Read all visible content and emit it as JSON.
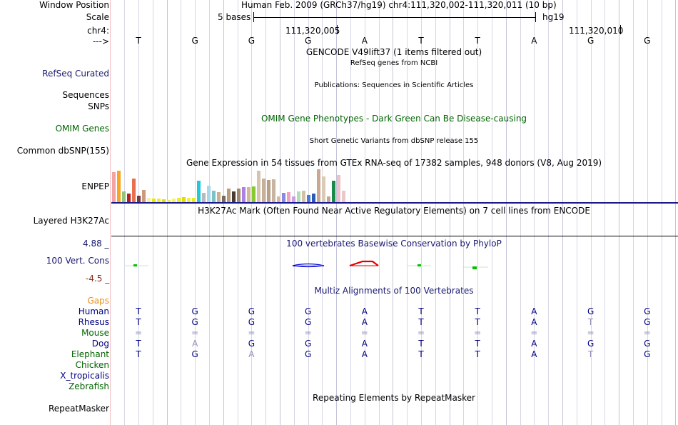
{
  "header": {
    "window_position_label": "Window Position",
    "window_position_text": "Human Feb. 2009 (GRCh37/hg19)   chr4:111,320,002-111,320,011 (10 bp)",
    "scale_label": "Scale",
    "scale_text": "5 bases",
    "assembly": "hg19",
    "chrom_label": "chr4:",
    "coord1": "111,320,005",
    "coord2": "111,320,010",
    "strand_label": "--->"
  },
  "bases": [
    "T",
    "G",
    "G",
    "G",
    "A",
    "T",
    "T",
    "A",
    "G",
    "G"
  ],
  "tracks": {
    "gencode_title": "GENCODE V49lift37 (1 items filtered out)",
    "refseq_subtitle": "RefSeq genes from NCBI",
    "refseq_label": "RefSeq Curated",
    "sequences_label": "Sequences",
    "snps_label": "SNPs",
    "publications_title": "Publications: Sequences in Scientific Articles",
    "omim_title": "OMIM Gene Phenotypes - Dark Green Can Be Disease-causing",
    "omim_label": "OMIM Genes",
    "dbsnp_title": "Short Genetic Variants from dbSNP release 155",
    "dbsnp_label": "Common dbSNP(155)",
    "gtex_title": "Gene Expression in 54 tissues from GTEx RNA-seq of 17382 samples, 948 donors (V8, Aug 2019)",
    "gtex_label": "ENPEP",
    "h3k27_title": "H3K27Ac Mark (Often Found Near Active Regulatory Elements) on 7 cell lines from ENCODE",
    "h3k27_label": "Layered H3K27Ac",
    "phylop_max": "4.88 _",
    "phylop_min": "-4.5 _",
    "phylop_title": "100 vertebrates Basewise Conservation by PhyloP",
    "phylop_label": "100 Vert. Cons",
    "multiz_title": "Multiz Alignments of 100 Vertebrates",
    "gaps_label": "Gaps",
    "repeat_title": "Repeating Elements by RepeatMasker",
    "repeat_label": "RepeatMasker"
  },
  "gtex_bars": [
    {
      "color": "#f4a3a3",
      "value": 0.92
    },
    {
      "color": "#f5a623",
      "value": 0.95
    },
    {
      "color": "#92c47f",
      "value": 0.32
    },
    {
      "color": "#b22222",
      "value": 0.25
    },
    {
      "color": "#e8704f",
      "value": 0.72
    },
    {
      "color": "#7a3b3b",
      "value": 0.2
    },
    {
      "color": "#cd9b7b",
      "value": 0.36
    },
    {
      "color": "#f2f2a0",
      "value": 0.12
    },
    {
      "color": "#e8e800",
      "value": 0.1
    },
    {
      "color": "#eeee33",
      "value": 0.1
    },
    {
      "color": "#dddd11",
      "value": 0.08
    },
    {
      "color": "#eeee55",
      "value": 0.06
    },
    {
      "color": "#f5f566",
      "value": 0.1
    },
    {
      "color": "#eeee22",
      "value": 0.13
    },
    {
      "color": "#dede00",
      "value": 0.15
    },
    {
      "color": "#f0f044",
      "value": 0.13
    },
    {
      "color": "#eaea22",
      "value": 0.12
    },
    {
      "color": "#22c8d8",
      "value": 0.65
    },
    {
      "color": "#b8b8c0",
      "value": 0.28
    },
    {
      "color": "#a8d8ea",
      "value": 0.5
    },
    {
      "color": "#7ec0c8",
      "value": 0.35
    },
    {
      "color": "#c8b090",
      "value": 0.3
    },
    {
      "color": "#7a6a5a",
      "value": 0.2
    },
    {
      "color": "#b89c80",
      "value": 0.42
    },
    {
      "color": "#4a3c30",
      "value": 0.33
    },
    {
      "color": "#a08a70",
      "value": 0.42
    },
    {
      "color": "#b080e0",
      "value": 0.45
    },
    {
      "color": "#d0b898",
      "value": 0.45
    },
    {
      "color": "#8ac832",
      "value": 0.47
    },
    {
      "color": "#d4c4b0",
      "value": 0.95
    },
    {
      "color": "#c8b098",
      "value": 0.72
    },
    {
      "color": "#b8a088",
      "value": 0.68
    },
    {
      "color": "#c8b4a0",
      "value": 0.7
    },
    {
      "color": "#d4b8a4",
      "value": 0.18
    },
    {
      "color": "#8a88e0",
      "value": 0.28
    },
    {
      "color": "#f0a0c0",
      "value": 0.3
    },
    {
      "color": "#c8a0e8",
      "value": 0.18
    },
    {
      "color": "#b0e0b0",
      "value": 0.33
    },
    {
      "color": "#d4c0a8",
      "value": 0.35
    },
    {
      "color": "#4a7ad8",
      "value": 0.22
    },
    {
      "color": "#2a5ab8",
      "value": 0.25
    },
    {
      "color": "#c8a890",
      "value": 1.0
    },
    {
      "color": "#dccab8",
      "value": 0.78
    },
    {
      "color": "#c0a890",
      "value": 0.18
    },
    {
      "color": "#1a8a4a",
      "value": 0.65
    },
    {
      "color": "#f0c0c8",
      "value": 0.82
    },
    {
      "color": "#e8c8c8",
      "value": 0.35
    }
  ],
  "alignments": [
    {
      "species": "Human",
      "color": "#000080",
      "bases": [
        "T",
        "G",
        "G",
        "G",
        "A",
        "T",
        "T",
        "A",
        "G",
        "G"
      ]
    },
    {
      "species": "Rhesus",
      "color": "#000080",
      "bases": [
        "T",
        "G",
        "G",
        "G",
        "A",
        "T",
        "T",
        "A",
        "T",
        "G"
      ],
      "light": [
        8
      ]
    },
    {
      "species": "Mouse",
      "color": "#006400",
      "bases": [
        "=",
        "=",
        "=",
        "=",
        "=",
        "=",
        "=",
        "=",
        "=",
        "="
      ],
      "allLight": true
    },
    {
      "species": "Dog",
      "color": "#000080",
      "bases": [
        "T",
        "A",
        "G",
        "G",
        "A",
        "T",
        "T",
        "A",
        "G",
        "G"
      ],
      "light": [
        1
      ]
    },
    {
      "species": "Elephant",
      "color": "#006400",
      "bases": [
        "T",
        "G",
        "A",
        "G",
        "A",
        "T",
        "T",
        "A",
        "T",
        "G"
      ],
      "light": [
        2,
        8
      ]
    },
    {
      "species": "Chicken",
      "color": "#006400",
      "bases": []
    },
    {
      "species": "X_tropicalis",
      "color": "#000080",
      "bases": []
    },
    {
      "species": "Zebrafish",
      "color": "#006400",
      "bases": []
    }
  ],
  "colors": {
    "label_blue": "#191970",
    "omim_green": "#006400",
    "gaps_orange": "#e8901a",
    "phylop_max": "#191970",
    "phylop_min": "#8b2d1a",
    "conserved_green": "#00c000",
    "accel_red": "#e00000",
    "accel_blue": "#0000d0"
  }
}
